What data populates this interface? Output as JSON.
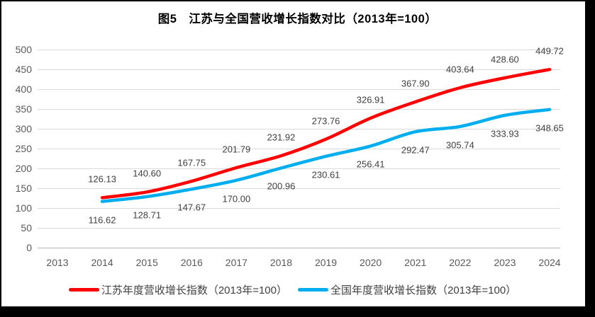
{
  "title": "图5　江苏与全国营收增长指数对比（2013年=100）",
  "chart_data": {
    "type": "line",
    "title": "图5　江苏与全国营收增长指数对比（2013年=100）",
    "x_categories": [
      "2013",
      "2014",
      "2015",
      "2016",
      "2017",
      "2018",
      "2019",
      "2020",
      "2021",
      "2022",
      "2023",
      "2024"
    ],
    "ylim": [
      0,
      500
    ],
    "ytick_step": 50,
    "grid": true,
    "legend_position": "bottom",
    "series": [
      {
        "name": "江苏年度营收增长指数（2013年=100）",
        "color": "#FF0000",
        "start_category": "2014",
        "values": [
          126.13,
          140.6,
          167.75,
          201.79,
          231.92,
          273.76,
          326.91,
          367.9,
          403.64,
          428.6,
          449.72
        ],
        "labels": [
          "126.13",
          "140.60",
          "167.75",
          "201.79",
          "231.92",
          "273.76",
          "326.91",
          "367.90",
          "403.64",
          "428.60",
          "449.72"
        ],
        "label_position": "above"
      },
      {
        "name": "全国年度营收增长指数（2013年=100）",
        "color": "#00AEEF",
        "start_category": "2014",
        "values": [
          116.62,
          128.71,
          147.67,
          170.0,
          200.96,
          230.61,
          256.41,
          292.47,
          305.74,
          333.93,
          348.65
        ],
        "labels": [
          "116.62",
          "128.71",
          "147.67",
          "170.00",
          "200.96",
          "230.61",
          "256.41",
          "292.47",
          "305.74",
          "333.93",
          "348.65"
        ],
        "label_position": "below"
      }
    ]
  },
  "colors": {
    "grid": "#D9D9D9",
    "axis": "#BFBFBF",
    "tick_text": "#595959",
    "data_label_text": "#404040",
    "legend_text": "#404040",
    "background": "#FFFFFF",
    "frame": "#000000"
  }
}
